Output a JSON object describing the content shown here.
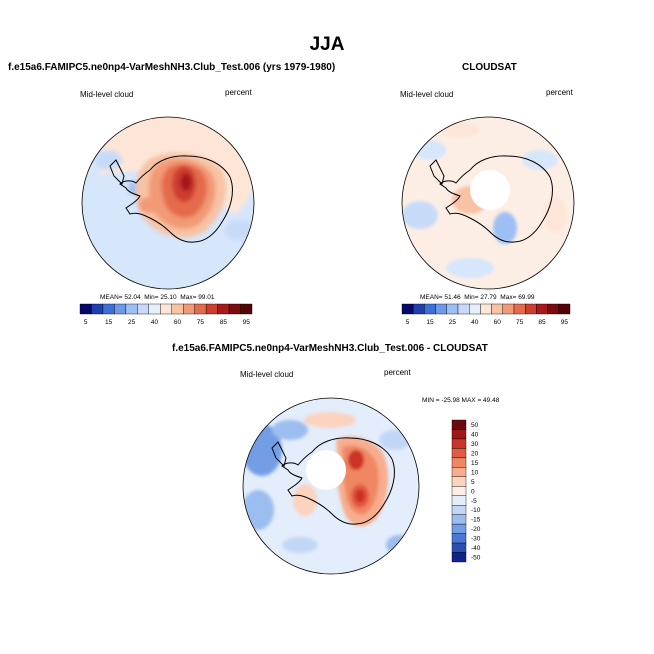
{
  "figure": {
    "season": "JJA",
    "model_title": "f.e15a6.FAMIPC5.ne0np4-VarMeshNH3.Club_Test.006 (yrs 1979-1980)",
    "obs_title": "CLOUDSAT",
    "diff_title": "f.e15a6.FAMIPC5.ne0np4-VarMeshNH3.Club_Test.006 - CLOUDSAT"
  },
  "panels": {
    "model": {
      "variable": "Mid-level cloud",
      "units": "percent",
      "mean_label": "MEAN=",
      "mean": "52.04",
      "min_label": "Min=",
      "min": "25.10",
      "max_label": "Max=",
      "max": "99.01"
    },
    "obs": {
      "variable": "Mid-level cloud",
      "units": "percent",
      "mean_label": "MEAN=",
      "mean": "51.46",
      "min_label": "Min=",
      "min": "27.79",
      "max_label": "Max=",
      "max": "69.99"
    },
    "diff": {
      "variable": "Mid-level cloud",
      "units": "percent",
      "minmax_text": "MIN = -25.98 MAX = 49.48"
    }
  },
  "chart_data": [
    {
      "type": "heatmap",
      "projection": "south-polar stereographic",
      "title": "f.e15a6.FAMIPC5.ne0np4-VarMeshNH3.Club_Test.006 (yrs 1979-1980)",
      "variable": "Mid-level cloud",
      "units": "percent",
      "mean": 52.04,
      "min": 25.1,
      "max": 99.01,
      "colorbar_levels": [
        5,
        10,
        15,
        20,
        25,
        30,
        40,
        50,
        60,
        70,
        75,
        80,
        85,
        90,
        95
      ],
      "colorbar_tick_labels": [
        "5",
        "15",
        "25",
        "40",
        "60",
        "75",
        "85",
        "95"
      ]
    },
    {
      "type": "heatmap",
      "projection": "south-polar stereographic",
      "title": "CLOUDSAT",
      "variable": "Mid-level cloud",
      "units": "percent",
      "mean": 51.46,
      "min": 27.79,
      "max": 69.99,
      "colorbar_levels": [
        5,
        10,
        15,
        20,
        25,
        30,
        40,
        50,
        60,
        70,
        75,
        80,
        85,
        90,
        95
      ],
      "colorbar_tick_labels": [
        "5",
        "15",
        "25",
        "40",
        "60",
        "75",
        "85",
        "95"
      ]
    },
    {
      "type": "heatmap",
      "projection": "south-polar stereographic",
      "title": "f.e15a6.FAMIPC5.ne0np4-VarMeshNH3.Club_Test.006 - CLOUDSAT",
      "variable": "Mid-level cloud",
      "units": "percent",
      "min": -25.98,
      "max": 49.48,
      "colorbar_levels": [
        -50,
        -40,
        -30,
        -20,
        -15,
        -10,
        -5,
        0,
        5,
        10,
        15,
        20,
        30,
        40,
        50
      ],
      "colorbar_tick_labels": [
        "50",
        "40",
        "30",
        "20",
        "15",
        "10",
        "5",
        "0",
        "-5",
        "-10",
        "-15",
        "-20",
        "-30",
        "-40",
        "-50"
      ]
    }
  ],
  "colors": {
    "abs_scale": [
      "#08086b",
      "#1f3fb0",
      "#3c6fd8",
      "#6c9ae9",
      "#9ebff3",
      "#c7dbf9",
      "#e6effc",
      "#fde6d8",
      "#f8c2a4",
      "#f29a76",
      "#e56b4c",
      "#cc3e2f",
      "#a8191b",
      "#7a0b10",
      "#540306"
    ],
    "diff_scale": [
      "#6b0a0c",
      "#a31618",
      "#cc3328",
      "#e35a43",
      "#f08764",
      "#f7ae8e",
      "#fbd3bf",
      "#fdeee5",
      "#e3edfb",
      "#c2d7f6",
      "#9cbdef",
      "#739ee6",
      "#4a78d4",
      "#2a4fb4",
      "#10258a"
    ],
    "coast": "#000000"
  }
}
